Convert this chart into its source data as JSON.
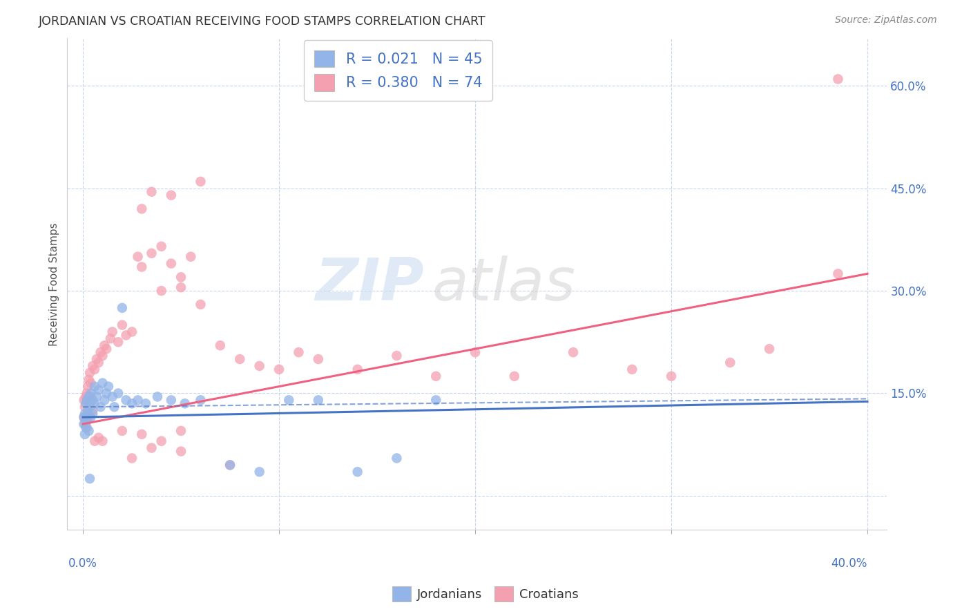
{
  "title": "JORDANIAN VS CROATIAN RECEIVING FOOD STAMPS CORRELATION CHART",
  "source": "Source: ZipAtlas.com",
  "ylabel": "Receiving Food Stamps",
  "jordanian_R": "0.021",
  "jordanian_N": "45",
  "croatian_R": "0.380",
  "croatian_N": "74",
  "jordanian_color": "#92b4e8",
  "croatian_color": "#f4a0b0",
  "jordanian_line_color": "#4472c4",
  "croatian_line_color": "#f06080",
  "legend_label_1": "Jordanians",
  "legend_label_2": "Croatians",
  "watermark_zip": "ZIP",
  "watermark_atlas": "atlas",
  "background_color": "#ffffff",
  "grid_color": "#c8d4e8",
  "xmin": 0.0,
  "xmax": 40.0,
  "ymin": 0.0,
  "ymax": 65.0,
  "jordanian_x": [
    0.05,
    0.05,
    0.1,
    0.1,
    0.15,
    0.15,
    0.2,
    0.2,
    0.25,
    0.3,
    0.3,
    0.35,
    0.4,
    0.4,
    0.5,
    0.5,
    0.6,
    0.6,
    0.7,
    0.8,
    0.9,
    1.0,
    1.1,
    1.2,
    1.3,
    1.5,
    1.6,
    1.8,
    2.0,
    2.2,
    2.5,
    2.8,
    3.2,
    3.8,
    4.5,
    5.2,
    6.0,
    7.5,
    9.0,
    10.5,
    12.0,
    14.0,
    16.0,
    18.0,
    0.35
  ],
  "jordanian_y": [
    10.5,
    11.5,
    9.0,
    12.0,
    10.0,
    13.5,
    11.0,
    14.0,
    12.5,
    9.5,
    14.5,
    13.0,
    11.5,
    15.0,
    12.0,
    14.0,
    13.5,
    16.0,
    14.5,
    15.5,
    13.0,
    16.5,
    14.0,
    15.0,
    16.0,
    14.5,
    13.0,
    15.0,
    27.5,
    14.0,
    13.5,
    14.0,
    13.5,
    14.5,
    14.0,
    13.5,
    14.0,
    4.5,
    3.5,
    14.0,
    14.0,
    3.5,
    5.5,
    14.0,
    2.5
  ],
  "croatian_x": [
    0.05,
    0.05,
    0.1,
    0.1,
    0.15,
    0.15,
    0.2,
    0.2,
    0.25,
    0.25,
    0.3,
    0.3,
    0.35,
    0.35,
    0.4,
    0.5,
    0.5,
    0.6,
    0.7,
    0.8,
    0.9,
    1.0,
    1.1,
    1.2,
    1.4,
    1.5,
    1.8,
    2.0,
    2.2,
    2.5,
    2.8,
    3.0,
    3.5,
    4.0,
    4.5,
    5.0,
    5.5,
    6.0,
    7.0,
    8.0,
    9.0,
    10.0,
    11.0,
    12.0,
    14.0,
    16.0,
    18.0,
    20.0,
    22.0,
    25.0,
    28.0,
    30.0,
    33.0,
    35.0,
    38.5,
    0.4,
    0.6,
    0.8,
    1.0,
    2.0,
    3.0,
    4.0,
    5.0,
    3.5,
    3.0,
    4.5,
    6.0,
    4.0,
    5.0,
    2.5,
    3.5,
    5.0,
    7.5,
    38.5
  ],
  "croatian_y": [
    11.5,
    14.0,
    10.5,
    13.0,
    11.0,
    14.5,
    10.0,
    15.0,
    12.0,
    16.0,
    11.5,
    17.0,
    13.5,
    18.0,
    16.5,
    12.5,
    19.0,
    18.5,
    20.0,
    19.5,
    21.0,
    20.5,
    22.0,
    21.5,
    23.0,
    24.0,
    22.5,
    25.0,
    23.5,
    24.0,
    35.0,
    33.5,
    35.5,
    36.5,
    34.0,
    30.5,
    35.0,
    28.0,
    22.0,
    20.0,
    19.0,
    18.5,
    21.0,
    20.0,
    18.5,
    20.5,
    17.5,
    21.0,
    17.5,
    21.0,
    18.5,
    17.5,
    19.5,
    21.5,
    32.5,
    14.5,
    8.0,
    8.5,
    8.0,
    9.5,
    9.0,
    8.0,
    9.5,
    44.5,
    42.0,
    44.0,
    46.0,
    30.0,
    32.0,
    5.5,
    7.0,
    6.5,
    4.5,
    61.0
  ],
  "jordanian_trend": [
    11.5,
    13.8
  ],
  "croatian_trend_start": 10.5,
  "croatian_trend_end": 32.5,
  "jordanian_dashed_start": 13.0,
  "jordanian_dashed_end": 14.2
}
